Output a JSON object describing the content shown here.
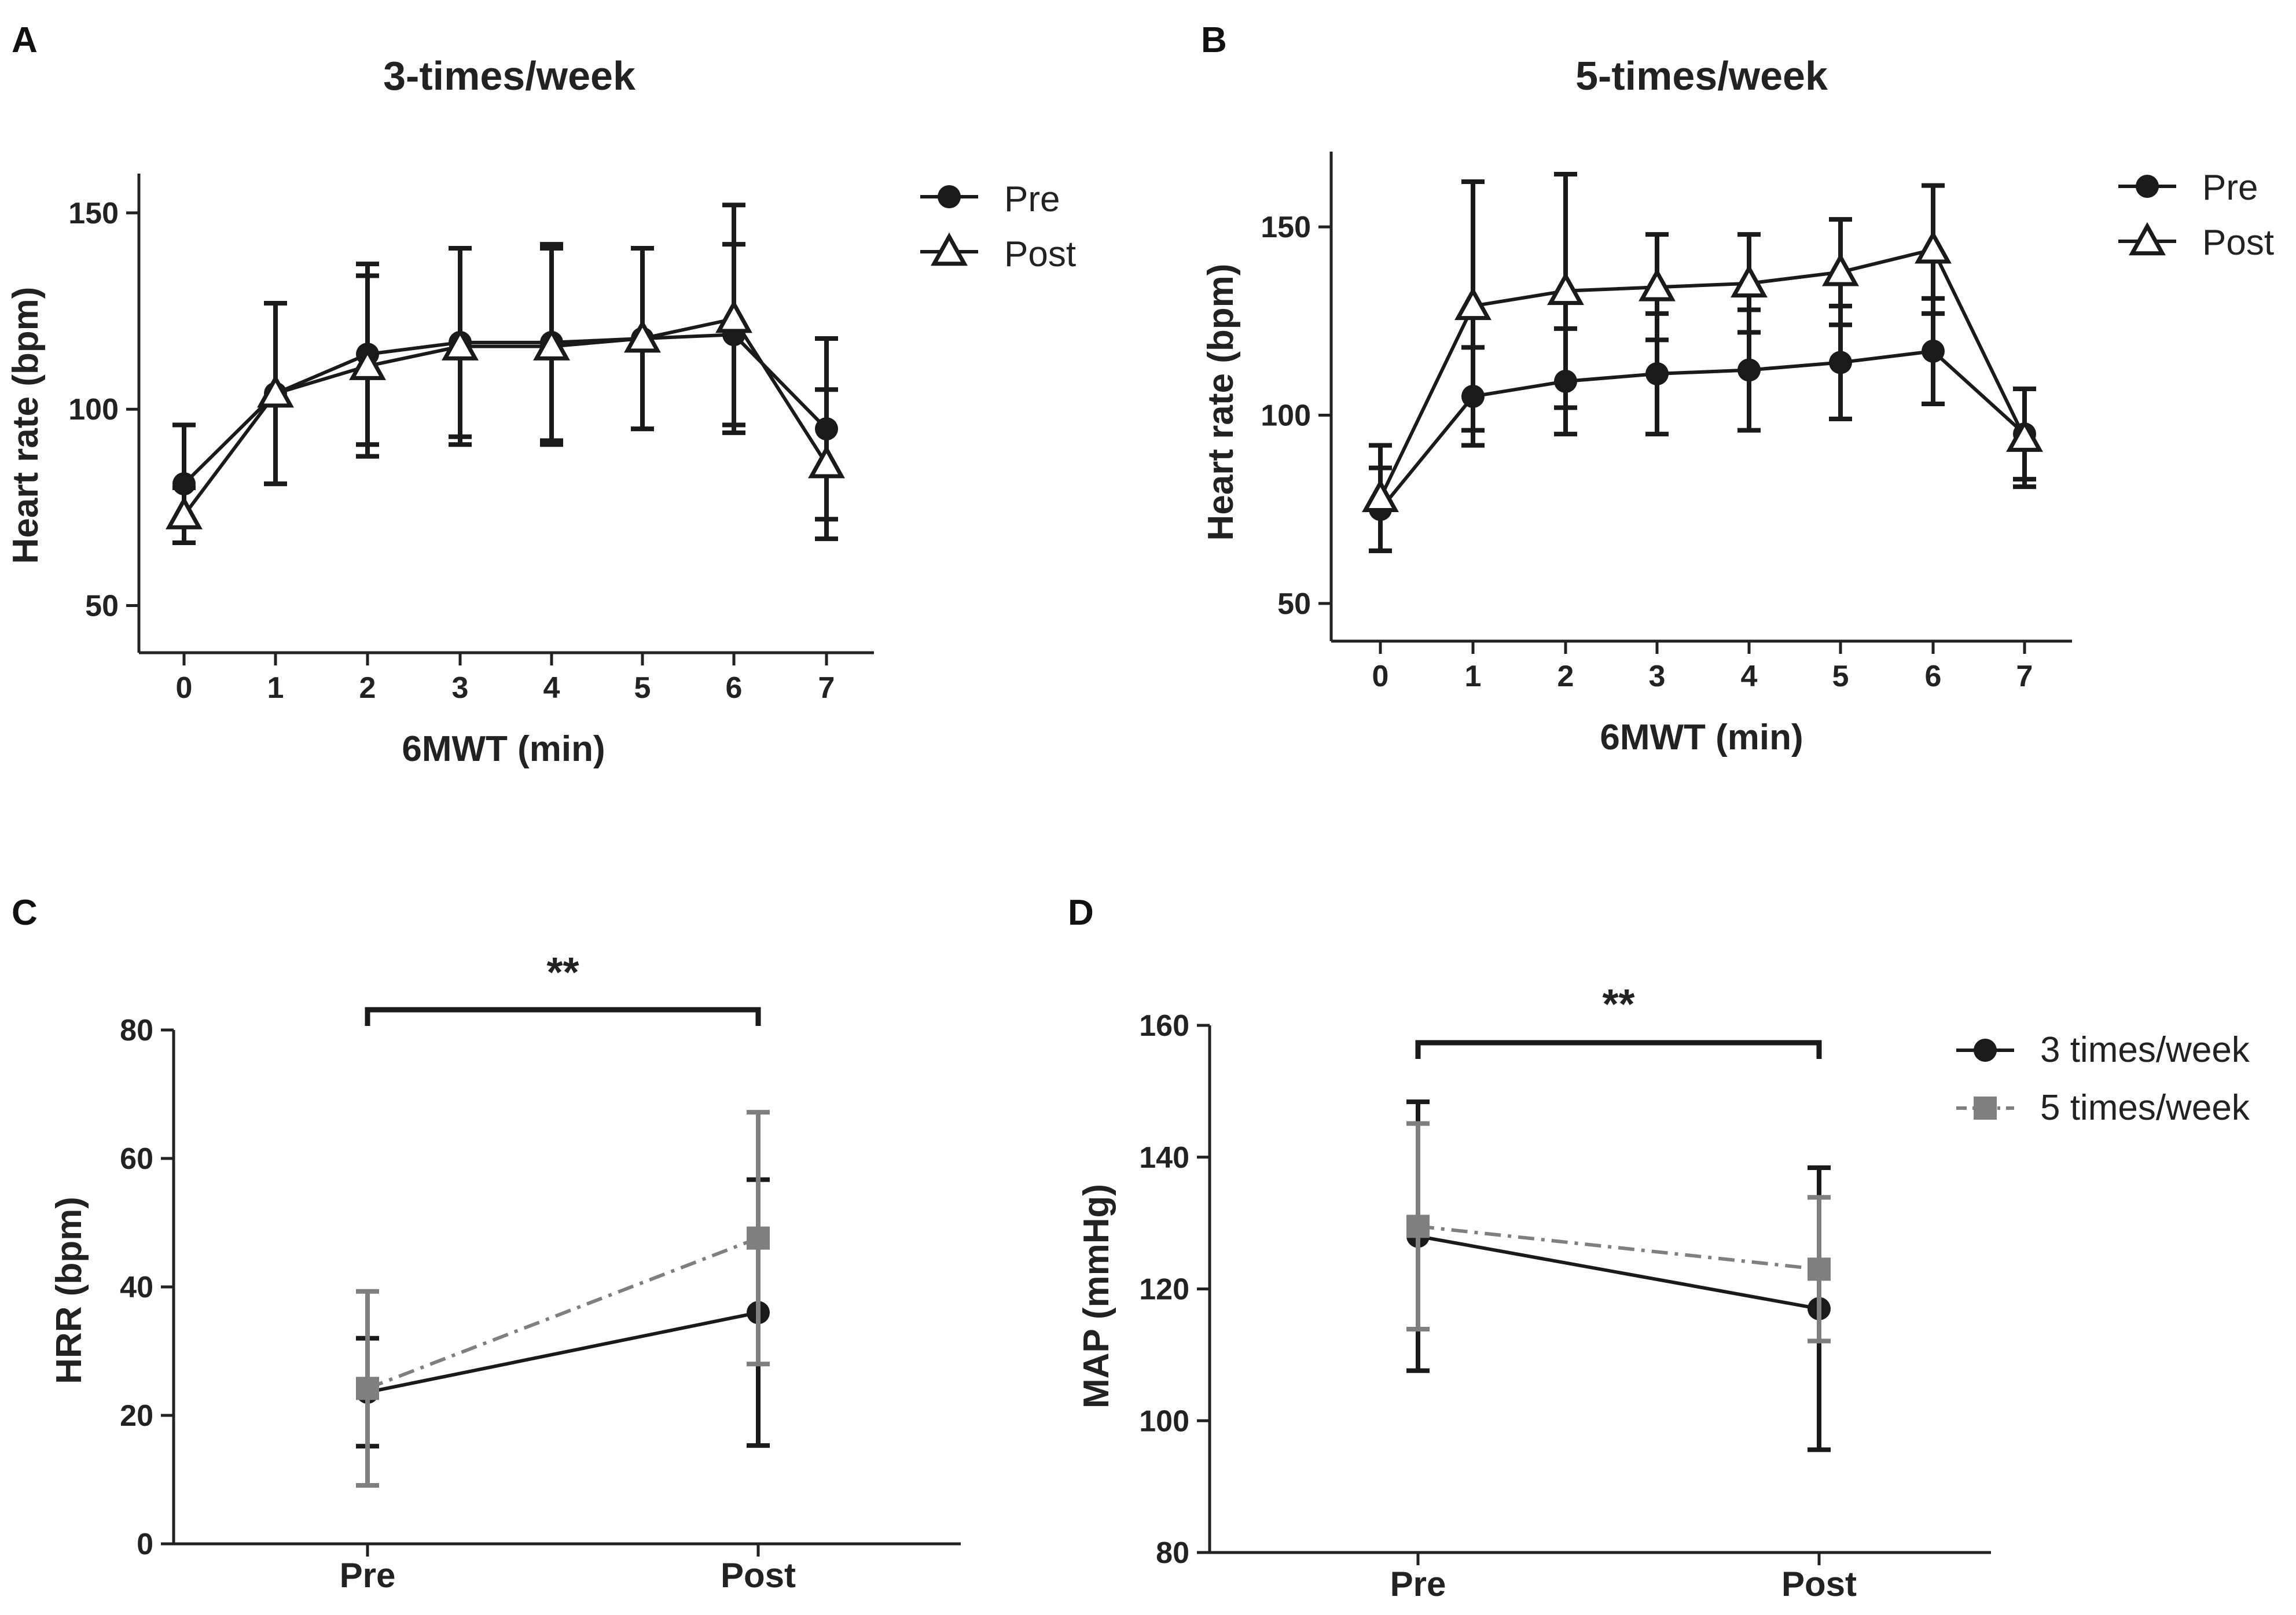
{
  "figure": {
    "panels": [
      "A",
      "B",
      "C",
      "D"
    ]
  },
  "chart_data": [
    {
      "id": "A",
      "type": "line",
      "title": "3-times/week",
      "xlabel": "6MWT (min)",
      "ylabel": "Heart rate (bpm)",
      "x": [
        0,
        1,
        2,
        3,
        4,
        5,
        6,
        7
      ],
      "x_ticks": [
        "0",
        "1",
        "2",
        "3",
        "4",
        "5",
        "6",
        "7"
      ],
      "ylim": [
        38,
        160
      ],
      "y_ticks": [
        50,
        100,
        150
      ],
      "legend": "top-right",
      "series": [
        {
          "name": "Pre",
          "marker": "circle",
          "values": [
            81,
            104,
            114,
            117,
            117,
            118,
            119,
            95
          ],
          "errors": [
            15,
            23,
            23,
            24,
            25,
            23,
            23,
            23
          ]
        },
        {
          "name": "Post",
          "marker": "triangle",
          "values": [
            73,
            104,
            111,
            116,
            116,
            118,
            123,
            86
          ],
          "errors": [
            7,
            23,
            23,
            25,
            25,
            23,
            29,
            19
          ]
        }
      ]
    },
    {
      "id": "B",
      "type": "line",
      "title": "5-times/week",
      "xlabel": "6MWT (min)",
      "ylabel": "Heart rate (bpm)",
      "x": [
        0,
        1,
        2,
        3,
        4,
        5,
        6,
        7
      ],
      "x_ticks": [
        "0",
        "1",
        "2",
        "3",
        "4",
        "5",
        "6",
        "7"
      ],
      "ylim": [
        40,
        170
      ],
      "y_ticks": [
        50,
        100,
        150
      ],
      "legend": "top-right",
      "series": [
        {
          "name": "Pre",
          "marker": "circle",
          "values": [
            75,
            105,
            109,
            111,
            112,
            114,
            117,
            95
          ],
          "errors": [
            11,
            13,
            14,
            16,
            16,
            15,
            14,
            12
          ]
        },
        {
          "name": "Post",
          "marker": "triangle",
          "values": [
            78,
            129,
            133,
            134,
            135,
            138,
            144,
            94
          ],
          "errors": [
            14,
            33,
            31,
            14,
            13,
            14,
            17,
            13
          ]
        }
      ]
    },
    {
      "id": "C",
      "type": "line",
      "title": "",
      "xlabel": "",
      "ylabel": "HRR (bpm)",
      "categories": [
        "Pre",
        "Post"
      ],
      "ylim": [
        0,
        80
      ],
      "y_ticks": [
        0,
        20,
        40,
        60,
        80
      ],
      "significance": "**",
      "series": [
        {
          "name": "3 times/week",
          "marker": "circle",
          "color": "#1a1a1a",
          "dash": "solid",
          "values": [
            23.6,
            36
          ],
          "errors": [
            8.4,
            20.7
          ]
        },
        {
          "name": "5 times/week",
          "marker": "square",
          "color": "#7f7f7f",
          "dash": "dashdot",
          "values": [
            24.2,
            47.6
          ],
          "errors": [
            15.1,
            19.6
          ]
        }
      ]
    },
    {
      "id": "D",
      "type": "line",
      "title": "",
      "xlabel": "",
      "ylabel": "MAP (mmHg)",
      "categories": [
        "Pre",
        "Post"
      ],
      "ylim": [
        80,
        160
      ],
      "y_ticks": [
        80,
        100,
        120,
        140,
        160
      ],
      "significance": "**",
      "legend": "top-right",
      "series": [
        {
          "name": "3 times/week",
          "marker": "circle",
          "color": "#1a1a1a",
          "dash": "solid",
          "values": [
            128,
            117
          ],
          "errors": [
            20.4,
            21.4
          ]
        },
        {
          "name": "5 times/week",
          "marker": "square",
          "color": "#7f7f7f",
          "dash": "dashdot",
          "values": [
            129.5,
            123
          ],
          "errors": [
            15.6,
            10.9
          ]
        }
      ]
    }
  ]
}
